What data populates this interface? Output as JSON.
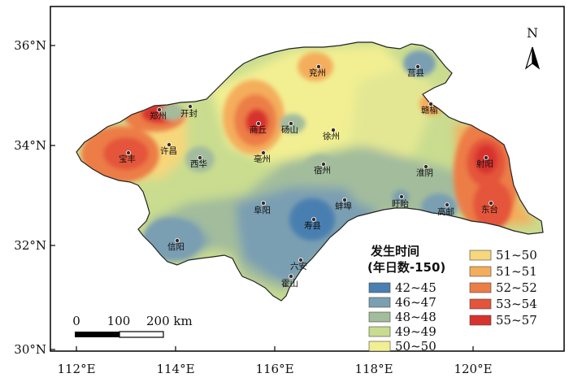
{
  "map": {
    "lat_labels": [
      "36°N",
      "34°N",
      "32°N",
      "30°N"
    ],
    "lon_labels": [
      "112°E",
      "114°E",
      "116°E",
      "118°E",
      "120°E"
    ],
    "north_label": "N",
    "cities": [
      {
        "name": "郑州",
        "id": "zhengzhou"
      },
      {
        "name": "开封",
        "id": "kaifeng"
      },
      {
        "name": "宝丰",
        "id": "baofeng"
      },
      {
        "name": "许昌",
        "id": "xuchang"
      },
      {
        "name": "西华",
        "id": "xihua"
      },
      {
        "name": "商丘",
        "id": "shangqiu"
      },
      {
        "name": "砀山",
        "id": "dangshan"
      },
      {
        "name": "亳州",
        "id": "bozhou"
      },
      {
        "name": "兖州",
        "id": "yanzhou"
      },
      {
        "name": "徐州",
        "id": "xuzhou"
      },
      {
        "name": "宿州",
        "id": "suzhou"
      },
      {
        "name": "莒县",
        "id": "juxian"
      },
      {
        "name": "赣榆",
        "id": "ganyu"
      },
      {
        "name": "射阳",
        "id": "sheyang"
      },
      {
        "name": "淮阴",
        "id": "huaiyin"
      },
      {
        "name": "阜阳",
        "id": "fuyang"
      },
      {
        "name": "蚌埠",
        "id": "bengbu"
      },
      {
        "name": "寿县",
        "id": "shouxian"
      },
      {
        "name": "盱眙",
        "id": "xuyi"
      },
      {
        "name": "高邮",
        "id": "gaoyou"
      },
      {
        "name": "东台",
        "id": "dongtai"
      },
      {
        "name": "信阳",
        "id": "xinyang"
      },
      {
        "name": "六安",
        "id": "luan"
      },
      {
        "name": "霍山",
        "id": "huoshan"
      }
    ]
  },
  "legend": {
    "title_line1": "发生时间",
    "title_line2": "(年日数-150)",
    "items": [
      {
        "label": "42~45",
        "color": "#4a7fb0"
      },
      {
        "label": "46~47",
        "color": "#7a9fb2"
      },
      {
        "label": "48~48",
        "color": "#a2bc9c"
      },
      {
        "label": "49~49",
        "color": "#c9dc8f"
      },
      {
        "label": "50~50",
        "color": "#f2ef92"
      },
      {
        "label": "51~50",
        "color": "#f6d77c"
      },
      {
        "label": "51~51",
        "color": "#f4ad5c"
      },
      {
        "label": "52~52",
        "color": "#ec7d46"
      },
      {
        "label": "53~54",
        "color": "#e4543a"
      },
      {
        "label": "55~57",
        "color": "#d8322e"
      }
    ]
  },
  "scale_bar": {
    "labels": [
      "0",
      "100",
      "200 km"
    ]
  }
}
